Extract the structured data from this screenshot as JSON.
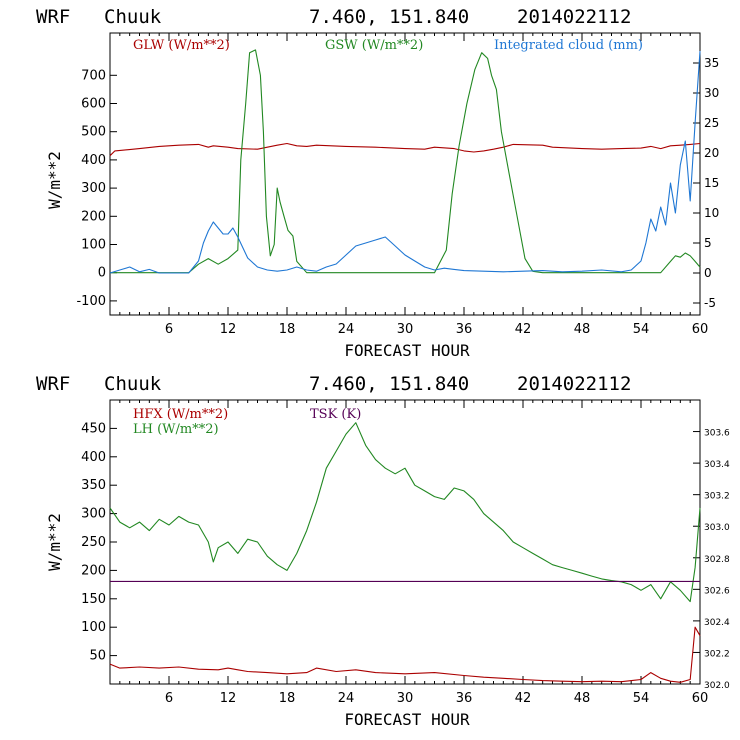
{
  "charts": [
    {
      "header": {
        "model": "WRF",
        "station": "Chuuk",
        "coords": "7.460, 151.840",
        "run": "2014022112"
      },
      "xlabel": "FORECAST HOUR",
      "ylabel": "W/m**2",
      "legend": [
        {
          "label": "GLW (W/m**2)",
          "color": "#aa0000"
        },
        {
          "label": "GSW (W/m**2)",
          "color": "#228822"
        },
        {
          "label": "Integrated cloud (mm)",
          "color": "#1f77d4"
        }
      ]
    },
    {
      "header": {
        "model": "WRF",
        "station": "Chuuk",
        "coords": "7.460, 151.840",
        "run": "2014022112"
      },
      "xlabel": "FORECAST HOUR",
      "ylabel": "W/m**2",
      "legend": [
        {
          "label": "HFX (W/m**2)",
          "color": "#aa0000"
        },
        {
          "label": "LH  (W/m**2)",
          "color": "#228822"
        },
        {
          "label": "TSK (K)",
          "color": "#550055"
        }
      ]
    }
  ],
  "chart_data": [
    {
      "type": "line",
      "xlim": [
        0,
        60
      ],
      "ylim": [
        -150,
        850
      ],
      "y2lim": [
        -7,
        40
      ],
      "x_ticks": [
        6,
        12,
        18,
        24,
        30,
        36,
        42,
        48,
        54,
        60
      ],
      "y_ticks": [
        -100,
        0,
        100,
        200,
        300,
        400,
        500,
        600,
        700
      ],
      "y2_ticks": [
        -5,
        0,
        5,
        10,
        15,
        20,
        25,
        30,
        35
      ],
      "series": [
        {
          "name": "GLW (W/m**2)",
          "color": "#aa0000",
          "axis": "left",
          "points": [
            [
              0,
              415
            ],
            [
              0.5,
              432
            ],
            [
              3,
              440
            ],
            [
              5,
              448
            ],
            [
              7,
              452
            ],
            [
              9,
              455
            ],
            [
              10,
              445
            ],
            [
              10.5,
              450
            ],
            [
              12,
              445
            ],
            [
              13,
              440
            ],
            [
              15,
              438
            ],
            [
              16,
              445
            ],
            [
              17,
              452
            ],
            [
              18,
              458
            ],
            [
              19,
              450
            ],
            [
              20,
              448
            ],
            [
              21,
              452
            ],
            [
              24,
              448
            ],
            [
              27,
              445
            ],
            [
              30,
              440
            ],
            [
              32,
              438
            ],
            [
              33,
              445
            ],
            [
              35,
              440
            ],
            [
              36,
              432
            ],
            [
              37,
              428
            ],
            [
              38,
              432
            ],
            [
              39,
              438
            ],
            [
              40,
              445
            ],
            [
              41,
              455
            ],
            [
              44,
              452
            ],
            [
              45,
              445
            ],
            [
              48,
              440
            ],
            [
              50,
              438
            ],
            [
              52,
              440
            ],
            [
              54,
              442
            ],
            [
              55,
              448
            ],
            [
              56,
              440
            ],
            [
              57,
              450
            ],
            [
              58,
              452
            ],
            [
              59,
              455
            ],
            [
              60,
              458
            ]
          ]
        },
        {
          "name": "GSW (W/m**2)",
          "color": "#228822",
          "axis": "left",
          "points": [
            [
              0,
              0
            ],
            [
              8,
              0
            ],
            [
              9,
              30
            ],
            [
              10,
              50
            ],
            [
              11,
              30
            ],
            [
              12,
              50
            ],
            [
              13,
              80
            ],
            [
              13.3,
              400
            ],
            [
              13.8,
              600
            ],
            [
              14.2,
              780
            ],
            [
              14.8,
              790
            ],
            [
              15.3,
              700
            ],
            [
              15.6,
              500
            ],
            [
              15.9,
              200
            ],
            [
              16.3,
              60
            ],
            [
              16.7,
              100
            ],
            [
              17.0,
              300
            ],
            [
              17.3,
              250
            ],
            [
              17.7,
              200
            ],
            [
              18.1,
              150
            ],
            [
              18.6,
              130
            ],
            [
              19,
              40
            ],
            [
              20,
              0
            ],
            [
              33,
              0
            ],
            [
              34.2,
              80
            ],
            [
              34.8,
              280
            ],
            [
              35.5,
              450
            ],
            [
              36.3,
              600
            ],
            [
              37.1,
              720
            ],
            [
              37.8,
              780
            ],
            [
              38.4,
              760
            ],
            [
              38.8,
              700
            ],
            [
              39.3,
              650
            ],
            [
              39.8,
              500
            ],
            [
              40.6,
              350
            ],
            [
              41.4,
              200
            ],
            [
              42.2,
              50
            ],
            [
              43,
              5
            ],
            [
              44,
              0
            ],
            [
              56,
              0
            ],
            [
              57,
              40
            ],
            [
              57.5,
              60
            ],
            [
              58,
              55
            ],
            [
              58.5,
              70
            ],
            [
              59,
              60
            ],
            [
              59.5,
              40
            ],
            [
              60,
              20
            ]
          ]
        },
        {
          "name": "Integrated cloud (mm)",
          "color": "#1f77d4",
          "axis": "right",
          "points": [
            [
              0,
              0
            ],
            [
              1,
              0.5
            ],
            [
              2,
              1.0
            ],
            [
              3,
              0.2
            ],
            [
              4,
              0.6
            ],
            [
              5,
              0
            ],
            [
              8,
              0
            ],
            [
              9,
              2
            ],
            [
              9.5,
              5
            ],
            [
              10,
              7
            ],
            [
              10.5,
              8.5
            ],
            [
              11,
              7.5
            ],
            [
              11.5,
              6.5
            ],
            [
              12,
              6.5
            ],
            [
              12.5,
              7.5
            ],
            [
              13,
              6
            ],
            [
              14,
              2.5
            ],
            [
              15,
              1
            ],
            [
              16,
              0.5
            ],
            [
              17,
              0.3
            ],
            [
              18,
              0.5
            ],
            [
              19,
              1
            ],
            [
              20,
              0.5
            ],
            [
              21,
              0.3
            ],
            [
              22,
              1
            ],
            [
              23,
              1.5
            ],
            [
              24,
              3
            ],
            [
              25,
              4.5
            ],
            [
              26,
              5
            ],
            [
              27,
              5.5
            ],
            [
              28,
              6
            ],
            [
              29,
              4.5
            ],
            [
              30,
              3
            ],
            [
              31,
              2
            ],
            [
              32,
              1
            ],
            [
              33,
              0.5
            ],
            [
              34,
              0.8
            ],
            [
              35,
              0.6
            ],
            [
              36,
              0.4
            ],
            [
              38,
              0.3
            ],
            [
              40,
              0.2
            ],
            [
              42,
              0.3
            ],
            [
              44,
              0.4
            ],
            [
              46,
              0.2
            ],
            [
              48,
              0.3
            ],
            [
              50,
              0.5
            ],
            [
              52,
              0.2
            ],
            [
              53,
              0.5
            ],
            [
              54,
              2
            ],
            [
              54.5,
              5
            ],
            [
              55,
              9
            ],
            [
              55.5,
              7
            ],
            [
              56,
              11
            ],
            [
              56.5,
              8
            ],
            [
              57,
              15
            ],
            [
              57.5,
              10
            ],
            [
              58,
              18
            ],
            [
              58.5,
              22
            ],
            [
              59,
              12
            ],
            [
              59.5,
              25
            ],
            [
              60,
              37
            ]
          ]
        }
      ]
    },
    {
      "type": "line",
      "xlim": [
        0,
        60
      ],
      "ylim": [
        0,
        500
      ],
      "y2lim": [
        302.0,
        303.8
      ],
      "x_ticks": [
        6,
        12,
        18,
        24,
        30,
        36,
        42,
        48,
        54,
        60
      ],
      "y_ticks": [
        50,
        100,
        150,
        200,
        250,
        300,
        350,
        400,
        450
      ],
      "y2_ticks": [
        302.0,
        302.2,
        302.4,
        302.6,
        302.8,
        303.0,
        303.2,
        303.4,
        303.6
      ],
      "series": [
        {
          "name": "HFX (W/m**2)",
          "color": "#aa0000",
          "axis": "left",
          "points": [
            [
              0,
              35
            ],
            [
              1,
              28
            ],
            [
              3,
              30
            ],
            [
              5,
              28
            ],
            [
              7,
              30
            ],
            [
              9,
              26
            ],
            [
              11,
              25
            ],
            [
              12,
              28
            ],
            [
              13,
              25
            ],
            [
              14,
              22
            ],
            [
              16,
              20
            ],
            [
              18,
              18
            ],
            [
              20,
              20
            ],
            [
              21,
              28
            ],
            [
              23,
              22
            ],
            [
              25,
              25
            ],
            [
              27,
              20
            ],
            [
              30,
              18
            ],
            [
              33,
              20
            ],
            [
              36,
              15
            ],
            [
              38,
              12
            ],
            [
              40,
              10
            ],
            [
              42,
              8
            ],
            [
              44,
              6
            ],
            [
              46,
              5
            ],
            [
              48,
              4
            ],
            [
              50,
              5
            ],
            [
              52,
              4
            ],
            [
              54,
              8
            ],
            [
              55,
              20
            ],
            [
              56,
              10
            ],
            [
              57,
              5
            ],
            [
              58,
              3
            ],
            [
              59,
              8
            ],
            [
              59.5,
              100
            ],
            [
              60,
              85
            ]
          ]
        },
        {
          "name": "LH  (W/m**2)",
          "color": "#228822",
          "axis": "left",
          "points": [
            [
              0,
              310
            ],
            [
              1,
              285
            ],
            [
              2,
              275
            ],
            [
              3,
              285
            ],
            [
              4,
              270
            ],
            [
              5,
              290
            ],
            [
              6,
              280
            ],
            [
              7,
              295
            ],
            [
              8,
              285
            ],
            [
              9,
              280
            ],
            [
              10,
              250
            ],
            [
              10.5,
              215
            ],
            [
              11,
              240
            ],
            [
              12,
              250
            ],
            [
              13,
              230
            ],
            [
              14,
              255
            ],
            [
              15,
              250
            ],
            [
              16,
              225
            ],
            [
              17,
              210
            ],
            [
              18,
              200
            ],
            [
              19,
              230
            ],
            [
              20,
              270
            ],
            [
              21,
              320
            ],
            [
              22,
              380
            ],
            [
              23,
              410
            ],
            [
              24,
              440
            ],
            [
              25,
              460
            ],
            [
              26,
              420
            ],
            [
              27,
              395
            ],
            [
              28,
              380
            ],
            [
              29,
              370
            ],
            [
              30,
              380
            ],
            [
              31,
              350
            ],
            [
              32,
              340
            ],
            [
              33,
              330
            ],
            [
              34,
              325
            ],
            [
              35,
              345
            ],
            [
              36,
              340
            ],
            [
              37,
              325
            ],
            [
              38,
              300
            ],
            [
              39,
              285
            ],
            [
              40,
              270
            ],
            [
              41,
              250
            ],
            [
              42,
              240
            ],
            [
              43,
              230
            ],
            [
              44,
              220
            ],
            [
              45,
              210
            ],
            [
              46,
              205
            ],
            [
              47,
              200
            ],
            [
              48,
              195
            ],
            [
              49,
              190
            ],
            [
              50,
              185
            ],
            [
              51,
              182
            ],
            [
              52,
              180
            ],
            [
              53,
              175
            ],
            [
              54,
              165
            ],
            [
              55,
              175
            ],
            [
              56,
              150
            ],
            [
              57,
              180
            ],
            [
              58,
              165
            ],
            [
              59,
              145
            ],
            [
              59.5,
              205
            ],
            [
              60,
              310
            ]
          ]
        },
        {
          "name": "TSK (K)",
          "color": "#550055",
          "axis": "right",
          "points": [
            [
              0,
              302.65
            ],
            [
              60,
              302.65
            ]
          ]
        }
      ]
    }
  ]
}
